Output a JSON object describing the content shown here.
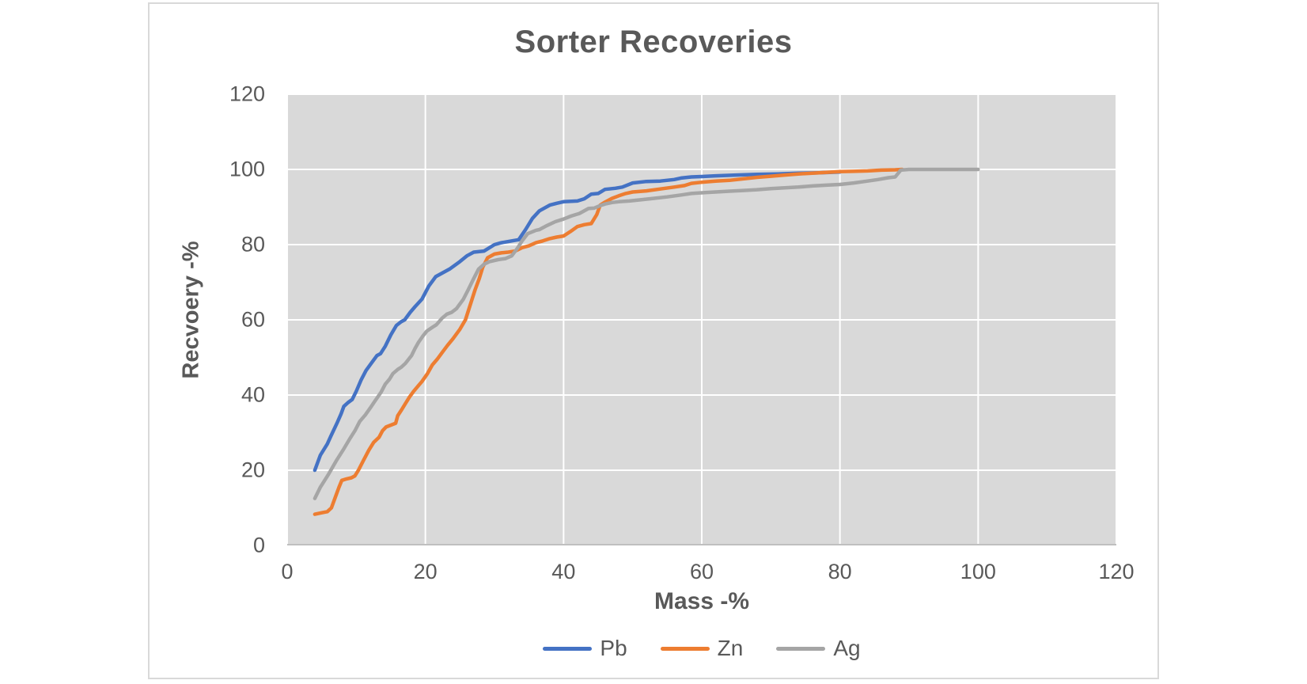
{
  "chart_data": {
    "type": "line",
    "title": "Sorter Recoveries",
    "xlabel": "Mass -%",
    "ylabel": "Recvoery -%",
    "xlim": [
      0,
      120
    ],
    "ylim": [
      0,
      120
    ],
    "x_ticks": [
      0,
      20,
      40,
      60,
      80,
      100,
      120
    ],
    "y_ticks": [
      0,
      20,
      40,
      60,
      80,
      100,
      120
    ],
    "grid": true,
    "legend_position": "bottom",
    "plot_background": "#d9d9d9",
    "gridline_color": "#ffffff",
    "axis_line_color": "#bfbfbf",
    "text_color": "#595959",
    "series": [
      {
        "name": "Pb",
        "color": "#4472C4",
        "points": [
          [
            4,
            20
          ],
          [
            4.8,
            24
          ],
          [
            5.8,
            27
          ],
          [
            6.3,
            29
          ],
          [
            7.2,
            32.5
          ],
          [
            7.8,
            35
          ],
          [
            8.2,
            37
          ],
          [
            8.8,
            38
          ],
          [
            9.4,
            38.8
          ],
          [
            10,
            41
          ],
          [
            10.7,
            44
          ],
          [
            11.4,
            46.5
          ],
          [
            12.2,
            48.5
          ],
          [
            13,
            50.5
          ],
          [
            13.5,
            51
          ],
          [
            14.2,
            53
          ],
          [
            15,
            56
          ],
          [
            15.8,
            58.5
          ],
          [
            16.5,
            59.5
          ],
          [
            17,
            60
          ],
          [
            17.8,
            62
          ],
          [
            18.5,
            63.5
          ],
          [
            19.5,
            65.5
          ],
          [
            20.5,
            69
          ],
          [
            21.5,
            71.5
          ],
          [
            22.5,
            72.5
          ],
          [
            23.5,
            73.5
          ],
          [
            25,
            75.5
          ],
          [
            26,
            77
          ],
          [
            27,
            78
          ],
          [
            28.5,
            78.3
          ],
          [
            30,
            80
          ],
          [
            31,
            80.5
          ],
          [
            32.5,
            81
          ],
          [
            33.5,
            81.3
          ],
          [
            34.5,
            84
          ],
          [
            35.5,
            87
          ],
          [
            36.5,
            89
          ],
          [
            38,
            90.5
          ],
          [
            39,
            91
          ],
          [
            40,
            91.4
          ],
          [
            42,
            91.6
          ],
          [
            43,
            92.2
          ],
          [
            44,
            93.4
          ],
          [
            45,
            93.6
          ],
          [
            46,
            94.7
          ],
          [
            47.5,
            95
          ],
          [
            48.5,
            95.3
          ],
          [
            50,
            96.4
          ],
          [
            52,
            96.8
          ],
          [
            54,
            96.9
          ],
          [
            56,
            97.3
          ],
          [
            57,
            97.7
          ],
          [
            58.5,
            98
          ],
          [
            60,
            98.1
          ],
          [
            62,
            98.3
          ],
          [
            65,
            98.5
          ],
          [
            68,
            98.7
          ],
          [
            71,
            98.8
          ],
          [
            74,
            99
          ],
          [
            77,
            99.1
          ],
          [
            80,
            99.3
          ]
        ]
      },
      {
        "name": "Zn",
        "color": "#ED7D31",
        "points": [
          [
            4,
            8.3
          ],
          [
            5,
            8.7
          ],
          [
            5.8,
            9
          ],
          [
            6.4,
            10
          ],
          [
            7,
            13
          ],
          [
            7.5,
            15.5
          ],
          [
            7.9,
            17.3
          ],
          [
            8.6,
            17.7
          ],
          [
            9.3,
            18
          ],
          [
            9.8,
            18.5
          ],
          [
            10.3,
            20
          ],
          [
            11,
            22.5
          ],
          [
            11.8,
            25.3
          ],
          [
            12.5,
            27.4
          ],
          [
            13.3,
            28.8
          ],
          [
            13.8,
            30.5
          ],
          [
            14.3,
            31.5
          ],
          [
            15,
            32
          ],
          [
            15.7,
            32.5
          ],
          [
            16,
            34.5
          ],
          [
            16.6,
            36.2
          ],
          [
            17.2,
            38
          ],
          [
            17.7,
            39.5
          ],
          [
            18.3,
            41
          ],
          [
            19,
            42.5
          ],
          [
            19.5,
            43.6
          ],
          [
            20.3,
            45.7
          ],
          [
            21,
            48
          ],
          [
            21.7,
            49.5
          ],
          [
            22.5,
            51.5
          ],
          [
            23.2,
            53.2
          ],
          [
            24,
            55
          ],
          [
            25,
            57.5
          ],
          [
            25.8,
            60
          ],
          [
            26.5,
            64
          ],
          [
            27.2,
            68
          ],
          [
            27.8,
            71
          ],
          [
            28.3,
            74
          ],
          [
            29,
            76.5
          ],
          [
            30,
            77.5
          ],
          [
            31,
            77.8
          ],
          [
            32,
            78
          ],
          [
            33,
            78.3
          ],
          [
            34,
            79.2
          ],
          [
            35,
            79.7
          ],
          [
            36,
            80.5
          ],
          [
            37,
            81
          ],
          [
            38,
            81.6
          ],
          [
            39,
            82
          ],
          [
            40,
            82.3
          ],
          [
            41,
            83.5
          ],
          [
            42,
            84.8
          ],
          [
            43,
            85.3
          ],
          [
            44,
            85.6
          ],
          [
            44.8,
            88
          ],
          [
            45.3,
            90.5
          ],
          [
            46,
            91.3
          ],
          [
            47,
            92.3
          ],
          [
            48,
            93
          ],
          [
            49,
            93.6
          ],
          [
            50,
            94
          ],
          [
            52,
            94.3
          ],
          [
            54,
            94.8
          ],
          [
            56,
            95.3
          ],
          [
            57.5,
            95.7
          ],
          [
            58.5,
            96.3
          ],
          [
            60,
            96.6
          ],
          [
            62,
            96.9
          ],
          [
            64,
            97.1
          ],
          [
            66,
            97.5
          ],
          [
            68,
            97.9
          ],
          [
            70,
            98.2
          ],
          [
            72,
            98.5
          ],
          [
            74,
            98.8
          ],
          [
            76,
            99
          ],
          [
            78,
            99.2
          ],
          [
            80,
            99.4
          ],
          [
            82,
            99.5
          ],
          [
            84,
            99.6
          ],
          [
            86,
            99.8
          ],
          [
            88,
            99.9
          ],
          [
            89,
            100
          ]
        ]
      },
      {
        "name": "Ag",
        "color": "#A5A5A5",
        "points": [
          [
            4,
            12.5
          ],
          [
            4.8,
            15.5
          ],
          [
            6,
            19
          ],
          [
            7.1,
            22.5
          ],
          [
            8.2,
            25.7
          ],
          [
            9,
            28.2
          ],
          [
            9.8,
            30.5
          ],
          [
            10.5,
            33
          ],
          [
            11.3,
            34.7
          ],
          [
            12,
            36.5
          ],
          [
            12.8,
            38.7
          ],
          [
            13.6,
            40.8
          ],
          [
            14.2,
            42.9
          ],
          [
            14.8,
            44.2
          ],
          [
            15.3,
            45.7
          ],
          [
            16,
            46.8
          ],
          [
            16.5,
            47.4
          ],
          [
            17.1,
            48.4
          ],
          [
            18,
            50.5
          ],
          [
            18.5,
            52.4
          ],
          [
            19,
            54
          ],
          [
            19.6,
            55.6
          ],
          [
            20.2,
            57
          ],
          [
            21,
            58
          ],
          [
            21.6,
            58.7
          ],
          [
            22.4,
            60.4
          ],
          [
            23.1,
            61.5
          ],
          [
            23.8,
            62
          ],
          [
            24.5,
            63
          ],
          [
            25.5,
            65.5
          ],
          [
            26.2,
            68
          ],
          [
            27,
            71
          ],
          [
            27.7,
            73.5
          ],
          [
            28.5,
            74.8
          ],
          [
            29.3,
            75.5
          ],
          [
            30.5,
            76
          ],
          [
            31.6,
            76.3
          ],
          [
            32.5,
            77
          ],
          [
            33.3,
            79
          ],
          [
            34,
            81
          ],
          [
            34.8,
            82.9
          ],
          [
            36,
            83.8
          ],
          [
            36.5,
            84
          ],
          [
            37.5,
            85
          ],
          [
            38.8,
            86.1
          ],
          [
            40,
            86.8
          ],
          [
            41.1,
            87.6
          ],
          [
            42.3,
            88.3
          ],
          [
            43.6,
            89.6
          ],
          [
            44.4,
            89.7
          ],
          [
            45.2,
            90.3
          ],
          [
            46,
            90.8
          ],
          [
            47,
            91.2
          ],
          [
            48,
            91.4
          ],
          [
            49.5,
            91.6
          ],
          [
            51,
            91.9
          ],
          [
            53,
            92.3
          ],
          [
            55,
            92.7
          ],
          [
            57,
            93.2
          ],
          [
            58.5,
            93.6
          ],
          [
            60,
            93.8
          ],
          [
            62,
            94
          ],
          [
            64,
            94.2
          ],
          [
            66,
            94.4
          ],
          [
            68,
            94.6
          ],
          [
            70,
            94.9
          ],
          [
            72,
            95.1
          ],
          [
            74,
            95.3
          ],
          [
            76,
            95.6
          ],
          [
            78,
            95.8
          ],
          [
            80,
            96
          ],
          [
            82,
            96.4
          ],
          [
            84,
            96.9
          ],
          [
            85.5,
            97.3
          ],
          [
            87,
            97.8
          ],
          [
            88,
            98
          ],
          [
            88.8,
            99.8
          ],
          [
            90,
            100
          ],
          [
            95,
            100
          ],
          [
            100,
            100
          ]
        ]
      }
    ]
  },
  "layout_text": {
    "title": "Sorter Recoveries",
    "x_axis_title": "Mass -%",
    "y_axis_title": "Recvoery -%"
  }
}
